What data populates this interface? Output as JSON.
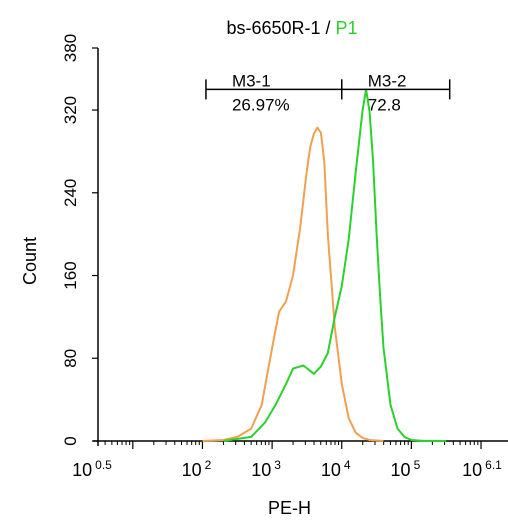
{
  "chart_data": {
    "type": "histogram",
    "title": "bs-6650R-1",
    "title_separator": " / ",
    "title_gate": "P1",
    "xlabel": "PE-H",
    "ylabel": "Count",
    "xscale": "log",
    "xlim": [
      0.5,
      6.1
    ],
    "ylim": [
      0,
      380
    ],
    "y_ticks": [
      0,
      80,
      160,
      240,
      320,
      380
    ],
    "x_tick_labels": [
      {
        "exp": 0.5,
        "base": "10",
        "sup": "0.5"
      },
      {
        "exp": 2,
        "base": "10",
        "sup": "2"
      },
      {
        "exp": 3,
        "base": "10",
        "sup": "3"
      },
      {
        "exp": 4,
        "base": "10",
        "sup": "4"
      },
      {
        "exp": 5,
        "base": "10",
        "sup": "5"
      },
      {
        "exp": 6.1,
        "base": "10",
        "sup": "6.1"
      }
    ],
    "colors": {
      "control": "#f0a050",
      "sample": "#2bd12b",
      "title_gate": "#2bd12b"
    },
    "series": [
      {
        "key": "control",
        "x": [
          2.0,
          2.3,
          2.5,
          2.7,
          2.85,
          3.0,
          3.1,
          3.2,
          3.3,
          3.4,
          3.5,
          3.55,
          3.6,
          3.65,
          3.7,
          3.75,
          3.8,
          3.9,
          4.0,
          4.1,
          4.2,
          4.3,
          4.4,
          4.6
        ],
        "y": [
          0,
          1,
          4,
          12,
          35,
          90,
          125,
          135,
          160,
          205,
          262,
          285,
          297,
          303,
          298,
          270,
          200,
          110,
          55,
          22,
          8,
          3,
          1,
          0
        ]
      },
      {
        "key": "sample",
        "x": [
          2.3,
          2.7,
          2.9,
          3.05,
          3.2,
          3.3,
          3.45,
          3.6,
          3.7,
          3.8,
          3.9,
          4.0,
          4.1,
          4.2,
          4.3,
          4.35,
          4.4,
          4.45,
          4.5,
          4.55,
          4.6,
          4.7,
          4.8,
          4.9,
          5.0,
          5.2,
          5.5
        ],
        "y": [
          0,
          4,
          18,
          35,
          55,
          70,
          73,
          65,
          72,
          85,
          120,
          150,
          195,
          260,
          320,
          340,
          318,
          270,
          200,
          140,
          90,
          35,
          12,
          4,
          1,
          0,
          0
        ]
      }
    ],
    "markers": [
      {
        "key": "m31",
        "label": "M3-1",
        "percent": "26.97%",
        "x_from": 2.05,
        "x_to": 4.0,
        "y": 340
      },
      {
        "key": "m32",
        "label": "M3-2",
        "percent": "72.8",
        "x_from": 4.0,
        "x_to": 5.55,
        "y": 340
      }
    ]
  }
}
